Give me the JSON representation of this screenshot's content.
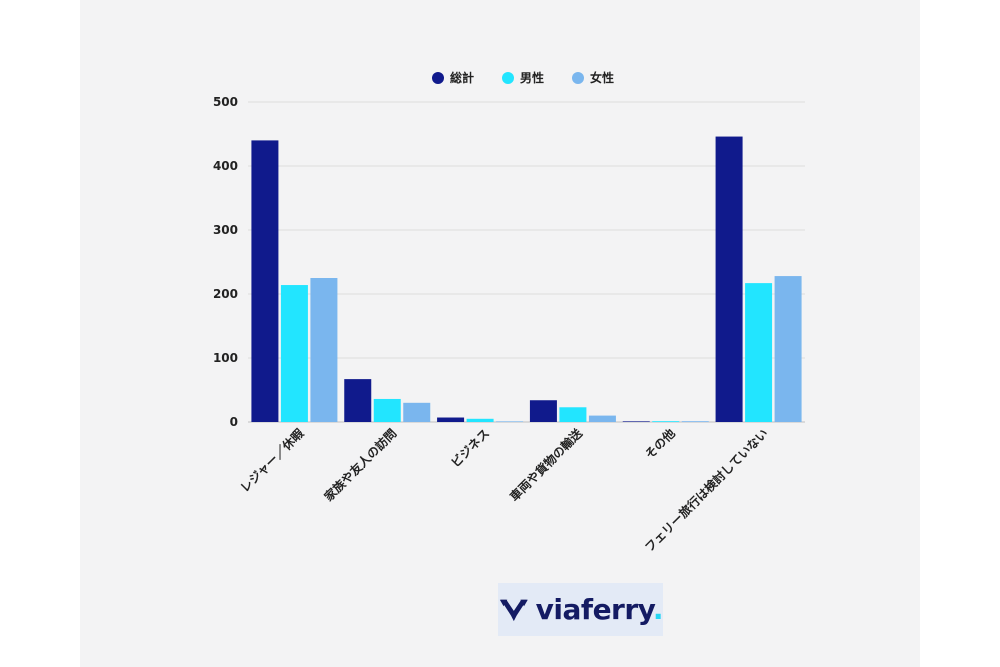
{
  "chart_data": {
    "type": "bar",
    "title": "",
    "xlabel": "",
    "ylabel": "",
    "ylim": [
      0,
      500
    ],
    "yticks": [
      0,
      100,
      200,
      300,
      400,
      500
    ],
    "legend_position": "top-center",
    "grid": true,
    "categories": [
      "レジャー／休暇",
      "家族や友人の訪問",
      "ビジネス",
      "車両や貨物の輸送",
      "その他",
      "フェリー旅行は検討していない"
    ],
    "series": [
      {
        "name": "総計",
        "color": "#101a8c",
        "values": [
          440,
          67,
          7,
          34,
          1,
          446
        ]
      },
      {
        "name": "男性",
        "color": "#22e5ff",
        "values": [
          214,
          36,
          5,
          23,
          0,
          217
        ]
      },
      {
        "name": "女性",
        "color": "#7ab6ee",
        "values": [
          225,
          30,
          1,
          10,
          0,
          228
        ]
      }
    ]
  },
  "logo": {
    "brand": "viaferry",
    "dot": "."
  }
}
